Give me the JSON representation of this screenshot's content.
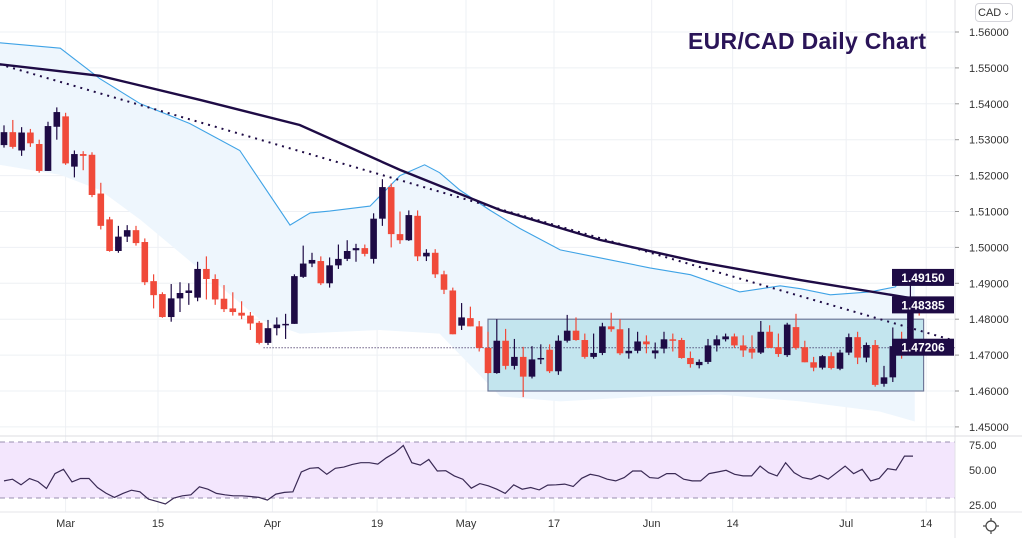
{
  "title": "EUR/CAD Daily Chart",
  "currency_button": {
    "label": "CAD",
    "icon": "chevron-down-icon"
  },
  "settings_icon": "gear-icon",
  "colors": {
    "up": "#1e0b45",
    "down": "#f04a3a",
    "band_line": "#3fa3e6",
    "band_fill": "#eef6fd",
    "range_fill": "#c3e5ee",
    "range_border": "#6f7899",
    "sma": "#1e0b45",
    "rsi_line": "#3a2a55",
    "rsi_fill": "#f3e6fd",
    "label_bg": "#1e0b45"
  },
  "chart_data": {
    "type": "candlestick",
    "title": "EUR/CAD Daily Chart",
    "price_ticks": [
      "1.56000",
      "1.55000",
      "1.54000",
      "1.53000",
      "1.52000",
      "1.51000",
      "1.50000",
      "1.49000",
      "1.48000",
      "1.47000",
      "1.46000",
      "1.45000"
    ],
    "ylim": [
      1.4485,
      1.565
    ],
    "time_ticks": [
      {
        "label": "Mar",
        "index": 7
      },
      {
        "label": "15",
        "index": 17.5
      },
      {
        "label": "Apr",
        "index": 30.5
      },
      {
        "label": "19",
        "index": 42.4
      },
      {
        "label": "May",
        "index": 52.5
      },
      {
        "label": "17",
        "index": 62.5
      },
      {
        "label": "Jun",
        "index": 73.6
      },
      {
        "label": "14",
        "index": 82.8
      },
      {
        "label": "Jul",
        "index": 95.7
      },
      {
        "label": "14",
        "index": 104.8
      }
    ],
    "price_labels": [
      {
        "value": "1.49150",
        "price": 1.4915
      },
      {
        "value": "1.48385",
        "price": 1.48385
      },
      {
        "value": "1.47206",
        "price": 1.47206
      }
    ],
    "candles_ohlc": [
      [
        1.5285,
        1.534,
        1.5278,
        1.5321
      ],
      [
        1.5321,
        1.5355,
        1.5275,
        1.528
      ],
      [
        1.527,
        1.5335,
        1.5255,
        1.532
      ],
      [
        1.532,
        1.533,
        1.528,
        1.529
      ],
      [
        1.5288,
        1.53,
        1.5208,
        1.5213
      ],
      [
        1.5213,
        1.535,
        1.5213,
        1.5338
      ],
      [
        1.5336,
        1.539,
        1.53,
        1.5377
      ],
      [
        1.5365,
        1.5375,
        1.523,
        1.5234
      ],
      [
        1.5225,
        1.527,
        1.5195,
        1.526
      ],
      [
        1.526,
        1.5268,
        1.5215,
        1.5255
      ],
      [
        1.5258,
        1.5265,
        1.514,
        1.5146
      ],
      [
        1.515,
        1.518,
        1.505,
        1.506
      ],
      [
        1.5078,
        1.5085,
        1.4988,
        1.499
      ],
      [
        1.499,
        1.506,
        1.4985,
        1.503
      ],
      [
        1.503,
        1.5062,
        1.5015,
        1.5048
      ],
      [
        1.5048,
        1.506,
        1.5005,
        1.5012
      ],
      [
        1.5015,
        1.5025,
        1.4895,
        1.4903
      ],
      [
        1.4906,
        1.4925,
        1.483,
        1.4867
      ],
      [
        1.487,
        1.4875,
        1.4804,
        1.4806
      ],
      [
        1.4806,
        1.4898,
        1.4793,
        1.4858
      ],
      [
        1.4858,
        1.4903,
        1.482,
        1.4873
      ],
      [
        1.4873,
        1.49,
        1.484,
        1.488
      ],
      [
        1.486,
        1.496,
        1.485,
        1.494
      ],
      [
        1.494,
        1.4975,
        1.4855,
        1.4912
      ],
      [
        1.4912,
        1.4925,
        1.484,
        1.4855
      ],
      [
        1.4857,
        1.4895,
        1.482,
        1.4828
      ],
      [
        1.483,
        1.4875,
        1.481,
        1.482
      ],
      [
        1.4818,
        1.485,
        1.48,
        1.481
      ],
      [
        1.481,
        1.482,
        1.477,
        1.4788
      ],
      [
        1.479,
        1.4795,
        1.473,
        1.4734
      ],
      [
        1.4734,
        1.4798,
        1.4728,
        1.4775
      ],
      [
        1.4775,
        1.4805,
        1.4755,
        1.4785
      ],
      [
        1.4785,
        1.4815,
        1.4745,
        1.4787
      ],
      [
        1.4787,
        1.4925,
        1.4787,
        1.492
      ],
      [
        1.4918,
        1.5005,
        1.4915,
        1.4955
      ],
      [
        1.4955,
        1.4985,
        1.4945,
        1.4965
      ],
      [
        1.4962,
        1.4975,
        1.4895,
        1.49
      ],
      [
        1.49,
        1.4972,
        1.4888,
        1.495
      ],
      [
        1.495,
        1.5008,
        1.494,
        1.4968
      ],
      [
        1.4968,
        1.502,
        1.4962,
        1.499
      ],
      [
        1.4992,
        1.501,
        1.496,
        1.4998
      ],
      [
        1.4998,
        1.5008,
        1.4975,
        1.4982
      ],
      [
        1.4968,
        1.5095,
        1.4955,
        1.508
      ],
      [
        1.508,
        1.519,
        1.506,
        1.5168
      ],
      [
        1.5168,
        1.5178,
        1.5,
        1.5037
      ],
      [
        1.5037,
        1.51,
        1.501,
        1.502
      ],
      [
        1.502,
        1.5103,
        1.5018,
        1.509
      ],
      [
        1.5088,
        1.5103,
        1.4962,
        1.4975
      ],
      [
        1.4975,
        1.4995,
        1.4962,
        1.4985
      ],
      [
        1.4985,
        1.4995,
        1.4915,
        1.4925
      ],
      [
        1.4925,
        1.4935,
        1.487,
        1.4882
      ],
      [
        1.488,
        1.4888,
        1.4758,
        1.4758
      ],
      [
        1.4782,
        1.4845,
        1.477,
        1.4805
      ],
      [
        1.4803,
        1.4835,
        1.478,
        1.478
      ],
      [
        1.478,
        1.4795,
        1.471,
        1.472
      ],
      [
        1.472,
        1.4765,
        1.4648,
        1.465
      ],
      [
        1.465,
        1.48,
        1.4648,
        1.474
      ],
      [
        1.474,
        1.4773,
        1.466,
        1.467
      ],
      [
        1.467,
        1.4745,
        1.466,
        1.4695
      ],
      [
        1.4695,
        1.4723,
        1.4583,
        1.464
      ],
      [
        1.464,
        1.4725,
        1.4635,
        1.4688
      ],
      [
        1.4688,
        1.473,
        1.4675,
        1.4692
      ],
      [
        1.4715,
        1.473,
        1.465,
        1.4655
      ],
      [
        1.4655,
        1.4755,
        1.4645,
        1.474
      ],
      [
        1.474,
        1.4812,
        1.4735,
        1.4768
      ],
      [
        1.4768,
        1.4805,
        1.474,
        1.4742
      ],
      [
        1.4742,
        1.476,
        1.469,
        1.4695
      ],
      [
        1.4695,
        1.476,
        1.469,
        1.4706
      ],
      [
        1.4706,
        1.479,
        1.47,
        1.478
      ],
      [
        1.478,
        1.4818,
        1.4765,
        1.4772
      ],
      [
        1.4772,
        1.48,
        1.47,
        1.4705
      ],
      [
        1.4705,
        1.4775,
        1.469,
        1.4712
      ],
      [
        1.4712,
        1.4765,
        1.4705,
        1.4738
      ],
      [
        1.4738,
        1.4755,
        1.4705,
        1.473
      ],
      [
        1.4705,
        1.4735,
        1.469,
        1.4713
      ],
      [
        1.4718,
        1.4765,
        1.4705,
        1.4744
      ],
      [
        1.4744,
        1.476,
        1.471,
        1.474
      ],
      [
        1.4742,
        1.4748,
        1.469,
        1.4692
      ],
      [
        1.4692,
        1.471,
        1.4665,
        1.4675
      ],
      [
        1.4672,
        1.4688,
        1.4663,
        1.4681
      ],
      [
        1.4681,
        1.4745,
        1.4675,
        1.4727
      ],
      [
        1.4727,
        1.4755,
        1.471,
        1.4744
      ],
      [
        1.4744,
        1.476,
        1.4738,
        1.4752
      ],
      [
        1.4752,
        1.476,
        1.472,
        1.4727
      ],
      [
        1.4727,
        1.4755,
        1.4695,
        1.4713
      ],
      [
        1.4718,
        1.4755,
        1.469,
        1.4707
      ],
      [
        1.4707,
        1.4795,
        1.4703,
        1.4765
      ],
      [
        1.4765,
        1.4783,
        1.472,
        1.472
      ],
      [
        1.4722,
        1.476,
        1.4695,
        1.4703
      ],
      [
        1.47,
        1.479,
        1.4695,
        1.4785
      ],
      [
        1.4778,
        1.4815,
        1.4715,
        1.472
      ],
      [
        1.4722,
        1.474,
        1.468,
        1.468
      ],
      [
        1.468,
        1.4695,
        1.4655,
        1.4665
      ],
      [
        1.4665,
        1.47,
        1.466,
        1.4697
      ],
      [
        1.4697,
        1.4708,
        1.466,
        1.4664
      ],
      [
        1.4662,
        1.4715,
        1.4658,
        1.4707
      ],
      [
        1.4707,
        1.476,
        1.47,
        1.475
      ],
      [
        1.475,
        1.4765,
        1.4675,
        1.4693
      ],
      [
        1.4693,
        1.4735,
        1.468,
        1.4728
      ],
      [
        1.4728,
        1.4742,
        1.4612,
        1.4617
      ],
      [
        1.462,
        1.467,
        1.4612,
        1.4638
      ],
      [
        1.4638,
        1.4777,
        1.4625,
        1.4725
      ],
      [
        1.4725,
        1.4765,
        1.469,
        1.4708
      ],
      [
        1.4708,
        1.4915,
        1.4708,
        1.4842
      ],
      [
        1.484,
        1.4858,
        1.481,
        1.48385
      ]
    ],
    "sma_line": [
      [
        -0.5,
        1.551
      ],
      [
        10.9,
        1.5478
      ],
      [
        22.3,
        1.5411
      ],
      [
        33.6,
        1.5341
      ],
      [
        45,
        1.5216
      ],
      [
        56.4,
        1.5104
      ],
      [
        67.7,
        1.5021
      ],
      [
        79,
        1.4959
      ],
      [
        90.5,
        1.4909
      ],
      [
        103,
        1.4859
      ]
    ],
    "trendline": [
      [
        -0.5,
        1.551
      ],
      [
        108,
        1.474
      ]
    ],
    "bollinger_upper": [
      [
        -0.5,
        1.557
      ],
      [
        6.4,
        1.5555
      ],
      [
        10.9,
        1.547
      ],
      [
        15.5,
        1.54
      ],
      [
        21.1,
        1.5345
      ],
      [
        26.8,
        1.527
      ],
      [
        32.5,
        1.5062
      ],
      [
        34.8,
        1.5096
      ],
      [
        37,
        1.5101
      ],
      [
        41.6,
        1.5115
      ],
      [
        45,
        1.52
      ],
      [
        47.8,
        1.523
      ],
      [
        49.5,
        1.5208
      ],
      [
        51.8,
        1.516
      ],
      [
        55.2,
        1.5104
      ],
      [
        58.6,
        1.5053
      ],
      [
        63.2,
        1.4993
      ],
      [
        67.7,
        1.4971
      ],
      [
        73.4,
        1.4943
      ],
      [
        78,
        1.4924
      ],
      [
        83.6,
        1.4876
      ],
      [
        88.2,
        1.4893
      ],
      [
        90.5,
        1.4885
      ],
      [
        93.9,
        1.4868
      ],
      [
        98.4,
        1.4876
      ],
      [
        101.3,
        1.489
      ],
      [
        102.4,
        1.4932
      ],
      [
        103.5,
        1.4935
      ]
    ],
    "bollinger_lower": [
      [
        -0.5,
        1.523
      ],
      [
        6.4,
        1.5202
      ],
      [
        10.9,
        1.516
      ],
      [
        15.5,
        1.5077
      ],
      [
        22.3,
        1.4938
      ],
      [
        29.1,
        1.4799
      ],
      [
        33.6,
        1.476
      ],
      [
        42.7,
        1.477
      ],
      [
        49.5,
        1.476
      ],
      [
        56.4,
        1.4585
      ],
      [
        63.2,
        1.4571
      ],
      [
        73.4,
        1.4585
      ],
      [
        81.4,
        1.459
      ],
      [
        90.5,
        1.4571
      ],
      [
        99.5,
        1.4543
      ],
      [
        103.5,
        1.4515
      ]
    ],
    "range_box": {
      "start_index": 55,
      "end_index": 104.5,
      "top": 1.48,
      "bottom": 1.46
    },
    "horizontal_lines": [
      {
        "price": 1.4915,
        "start_index": 102.5
      },
      {
        "price": 1.47206,
        "start_index": 29.5
      }
    ],
    "rsi": {
      "ticks": [
        "75.00",
        "50.00",
        "25.00"
      ],
      "overbought": 70,
      "oversold": 30,
      "ylim": [
        22,
        76
      ],
      "values": [
        42.2,
        43.4,
        39.4,
        43.9,
        41.7,
        36.8,
        47.4,
        50.5,
        41.5,
        43.9,
        43.9,
        37.5,
        33.5,
        30.4,
        33.3,
        35.6,
        34.4,
        29.2,
        27.6,
        25.7,
        30,
        31.6,
        32.3,
        38,
        36.3,
        33.3,
        32.3,
        31.6,
        31.6,
        31.1,
        30.4,
        28.5,
        32.8,
        34,
        34.4,
        48.6,
        51.2,
        51.7,
        46.9,
        51.2,
        52.1,
        54,
        55.2,
        55.2,
        54.2,
        58.7,
        62.3,
        67.5,
        55.2,
        53.5,
        57.5,
        49.3,
        49.5,
        45.8,
        43.4,
        37,
        40.3,
        38.7,
        36.3,
        33.3,
        39.4,
        36.3,
        37.5,
        35.8,
        39.2,
        39.4,
        39.9,
        38.2,
        44.1,
        46.9,
        45.8,
        43.4,
        42.2,
        44.6,
        49.3,
        49.3,
        44.6,
        44.1,
        47.4,
        47.4,
        43.4,
        42.2,
        42.2,
        47.4,
        48.6,
        49.8,
        46.9,
        45.8,
        45.8,
        52.8,
        48.1,
        45.8,
        55.2,
        48.1,
        44.6,
        43.4,
        46.2,
        43.4,
        48.1,
        52.8,
        47.4,
        50.5,
        42.2,
        43.9,
        50.9,
        50,
        59.9,
        59.9
      ]
    }
  }
}
